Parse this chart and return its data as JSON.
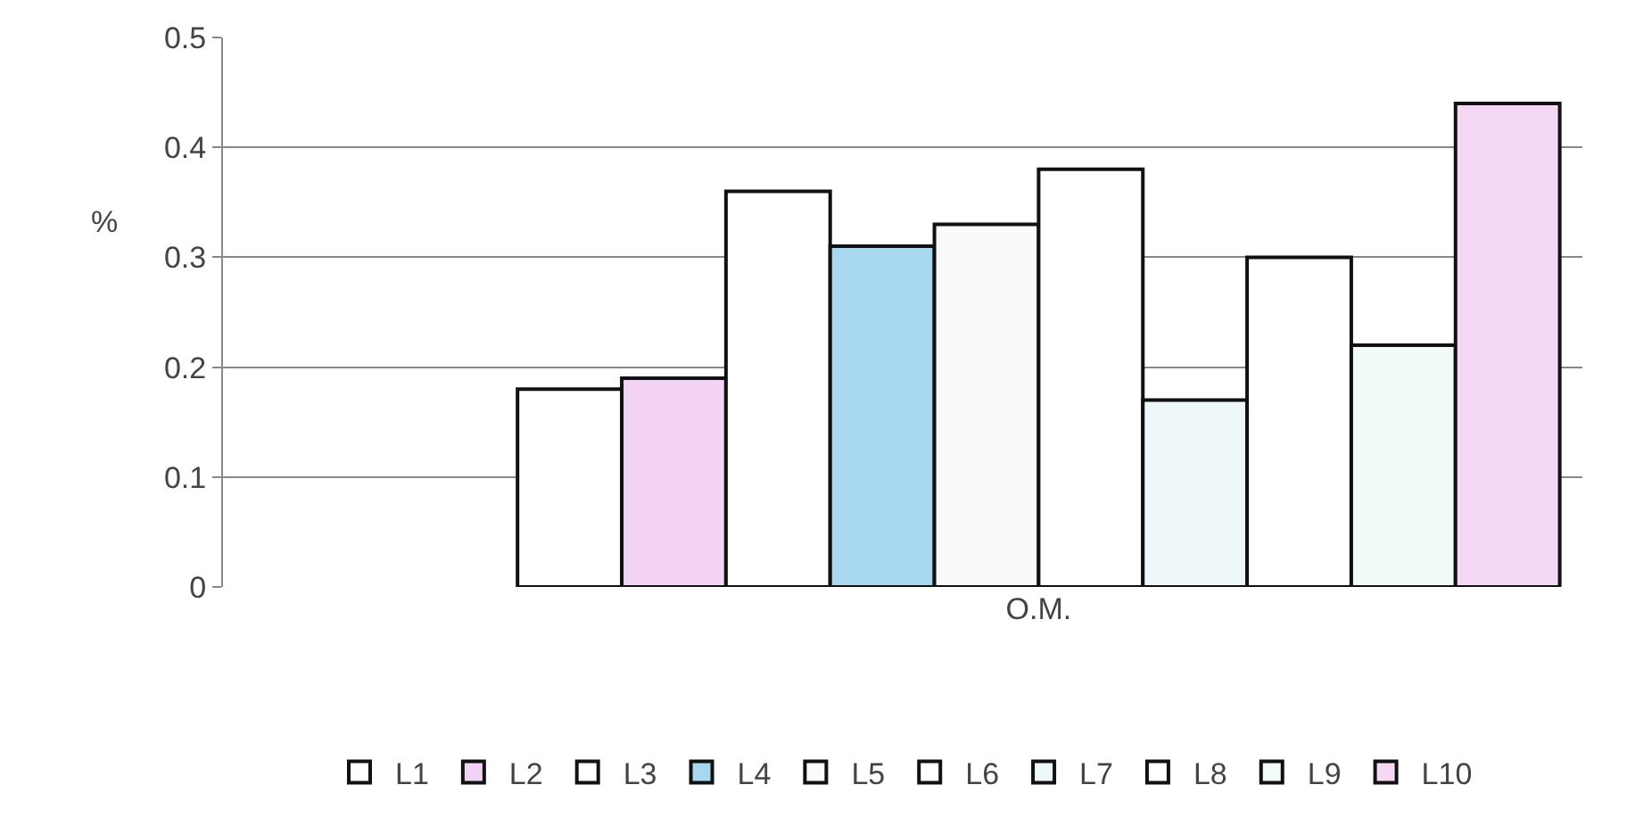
{
  "chart_data": {
    "type": "bar",
    "ylabel": "%",
    "categories": [
      "O.M."
    ],
    "series": [
      {
        "name": "L1",
        "color": "#ffffff",
        "values": [
          0.18
        ]
      },
      {
        "name": "L2",
        "color": "#f3d3f3",
        "values": [
          0.19
        ]
      },
      {
        "name": "L3",
        "color": "#ffffff",
        "values": [
          0.36
        ]
      },
      {
        "name": "L4",
        "color": "#a8d8f0",
        "values": [
          0.31
        ]
      },
      {
        "name": "L5",
        "color": "#fafafa",
        "values": [
          0.33
        ]
      },
      {
        "name": "L6",
        "color": "#ffffff",
        "values": [
          0.38
        ]
      },
      {
        "name": "L7",
        "color": "#eef8fb",
        "values": [
          0.17
        ]
      },
      {
        "name": "L8",
        "color": "#ffffff",
        "values": [
          0.3
        ]
      },
      {
        "name": "L9",
        "color": "#f3fafa",
        "values": [
          0.22
        ]
      },
      {
        "name": "L10",
        "color": "#f5d8f3",
        "values": [
          0.44
        ]
      }
    ],
    "ylim": [
      0,
      0.5
    ],
    "yticks": [
      0,
      0.1,
      0.2,
      0.3,
      0.4,
      0.5
    ],
    "grid": "y",
    "legend": "bottom"
  }
}
